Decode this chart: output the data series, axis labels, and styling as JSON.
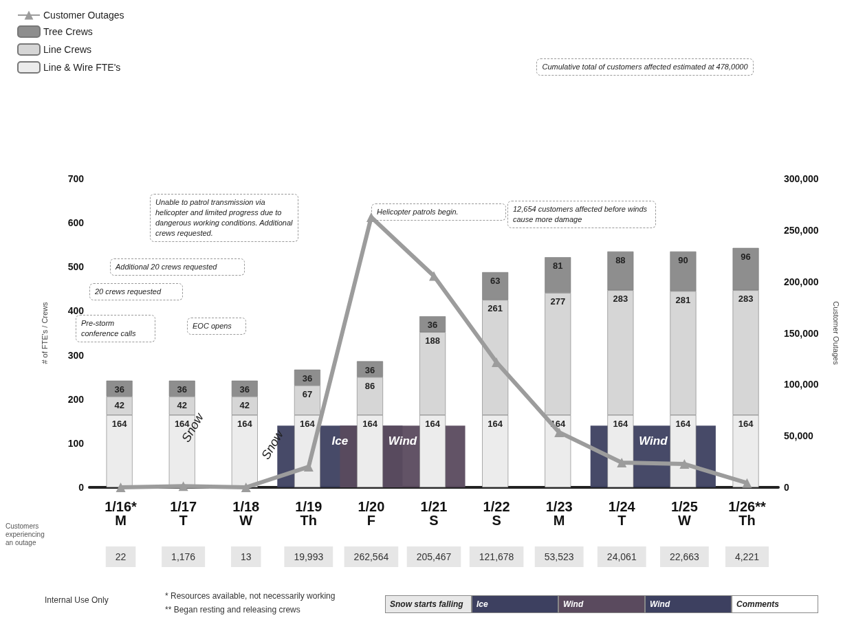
{
  "chart_data": {
    "type": "bar",
    "stacked": true,
    "ylabel": "# of FTE's / Crews",
    "y2label": "Customer Outages",
    "categories": [
      "1/16*\nM",
      "1/17\nT",
      "1/18\nW",
      "1/19\nTh",
      "1/20\nF",
      "1/21\nS",
      "1/22\nS",
      "1/23\nM",
      "1/24\nT",
      "1/25\nW",
      "1/26**\nTh"
    ],
    "series": [
      {
        "name": "Line & Wire FTE's",
        "color": "#ececec",
        "values": [
          164,
          164,
          164,
          164,
          164,
          164,
          164,
          164,
          164,
          164,
          164
        ]
      },
      {
        "name": "Line Crews",
        "color": "#d6d6d6",
        "values": [
          42,
          42,
          42,
          67,
          86,
          188,
          261,
          277,
          283,
          281,
          283
        ]
      },
      {
        "name": "Tree Crews",
        "color": "#8e8e8e",
        "values": [
          36,
          36,
          36,
          36,
          36,
          36,
          63,
          81,
          88,
          90,
          96
        ]
      },
      {
        "name": "Customer Outages",
        "type": "line",
        "axis": "y2",
        "color": "#9c9c9c",
        "marker": "triangle",
        "values": [
          22,
          1176,
          13,
          19993,
          262564,
          205467,
          121678,
          53523,
          24061,
          22663,
          4221
        ],
        "value_labels": [
          "22",
          "1,176",
          "13",
          "19,993",
          "262,564",
          "205,467",
          "121,678",
          "53,523",
          "24,061",
          "22,663",
          "4,221"
        ]
      }
    ],
    "data_labels": true,
    "ylim": [
      0,
      700
    ],
    "yticks": [
      0,
      100,
      200,
      300,
      400,
      500,
      600,
      700
    ],
    "y2lim": [
      0,
      300000
    ],
    "y2ticks": [
      {
        "value": 0,
        "label": "0"
      },
      {
        "value": 50000,
        "label": "50,000"
      },
      {
        "value": 100000,
        "label": "100,000"
      },
      {
        "value": 150000,
        "label": "150,000"
      },
      {
        "value": 200000,
        "label": "200,000"
      },
      {
        "value": 250000,
        "label": "250,000"
      },
      {
        "value": 300000,
        "label": "300,000"
      }
    ],
    "bands": [
      {
        "axis": "x",
        "from": "1/19\nTh",
        "to": "1/20\nF",
        "label": "Ice",
        "color": "#3d4060"
      },
      {
        "axis": "x",
        "from": "1/20\nF",
        "to": "1/21\nS",
        "label": "Wind",
        "color": "#5a4a5e"
      },
      {
        "axis": "x",
        "from": "1/24\nT",
        "to": "1/25\nW",
        "label": "Wind",
        "color": "#3d4060"
      }
    ],
    "annotations": [
      "Cumulative total of customers affected estimated at 478,0000",
      "Pre-storm conference calls",
      "20 crews requested",
      "Additional 20 crews requested",
      "EOC opens",
      "Unable to patrol transmission via helicopter and limited progress due to dangerous working conditions. Additional crews requested.",
      "Helicopter patrols begin.",
      "12,654 customers affected before winds cause more damage",
      "Snow",
      "Snow",
      "Customers experiencing an outage",
      "Internal Use Only",
      "* Resources available, not necessarily working",
      "** Began resting and releasing crews",
      "Snow starts falling",
      "Comments"
    ],
    "grid": false,
    "legend": "top left"
  }
}
